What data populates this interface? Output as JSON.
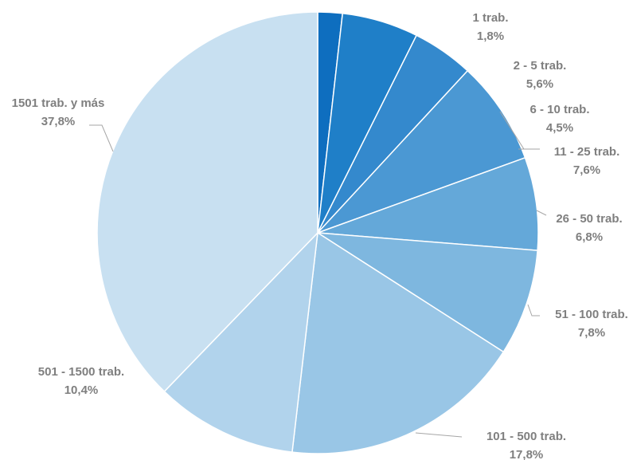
{
  "chart_data": {
    "type": "pie",
    "title": "",
    "categories": [
      "1 trab.",
      "2 - 5 trab.",
      "6 - 10 trab.",
      "11 - 25 trab.",
      "26 - 50 trab.",
      "51 - 100 trab.",
      "101 - 500 trab.",
      "501 - 1500 trab.",
      "1501 trab. y más"
    ],
    "values": [
      1.8,
      5.6,
      4.5,
      7.6,
      6.8,
      7.8,
      17.8,
      10.4,
      37.8
    ],
    "value_labels": [
      "1,8%",
      "5,6%",
      "4,5%",
      "7,6%",
      "6,8%",
      "7,8%",
      "17,8%",
      "10,4%",
      "37,8%"
    ],
    "colors": [
      "#0e6ebf",
      "#1f7fc8",
      "#3489cd",
      "#4b98d3",
      "#64a8d9",
      "#7eb7df",
      "#99c6e6",
      "#b1d3ec",
      "#c8e0f1"
    ],
    "label_color": "#7f7f7f",
    "start_angle_deg": 0,
    "direction": "clockwise"
  }
}
